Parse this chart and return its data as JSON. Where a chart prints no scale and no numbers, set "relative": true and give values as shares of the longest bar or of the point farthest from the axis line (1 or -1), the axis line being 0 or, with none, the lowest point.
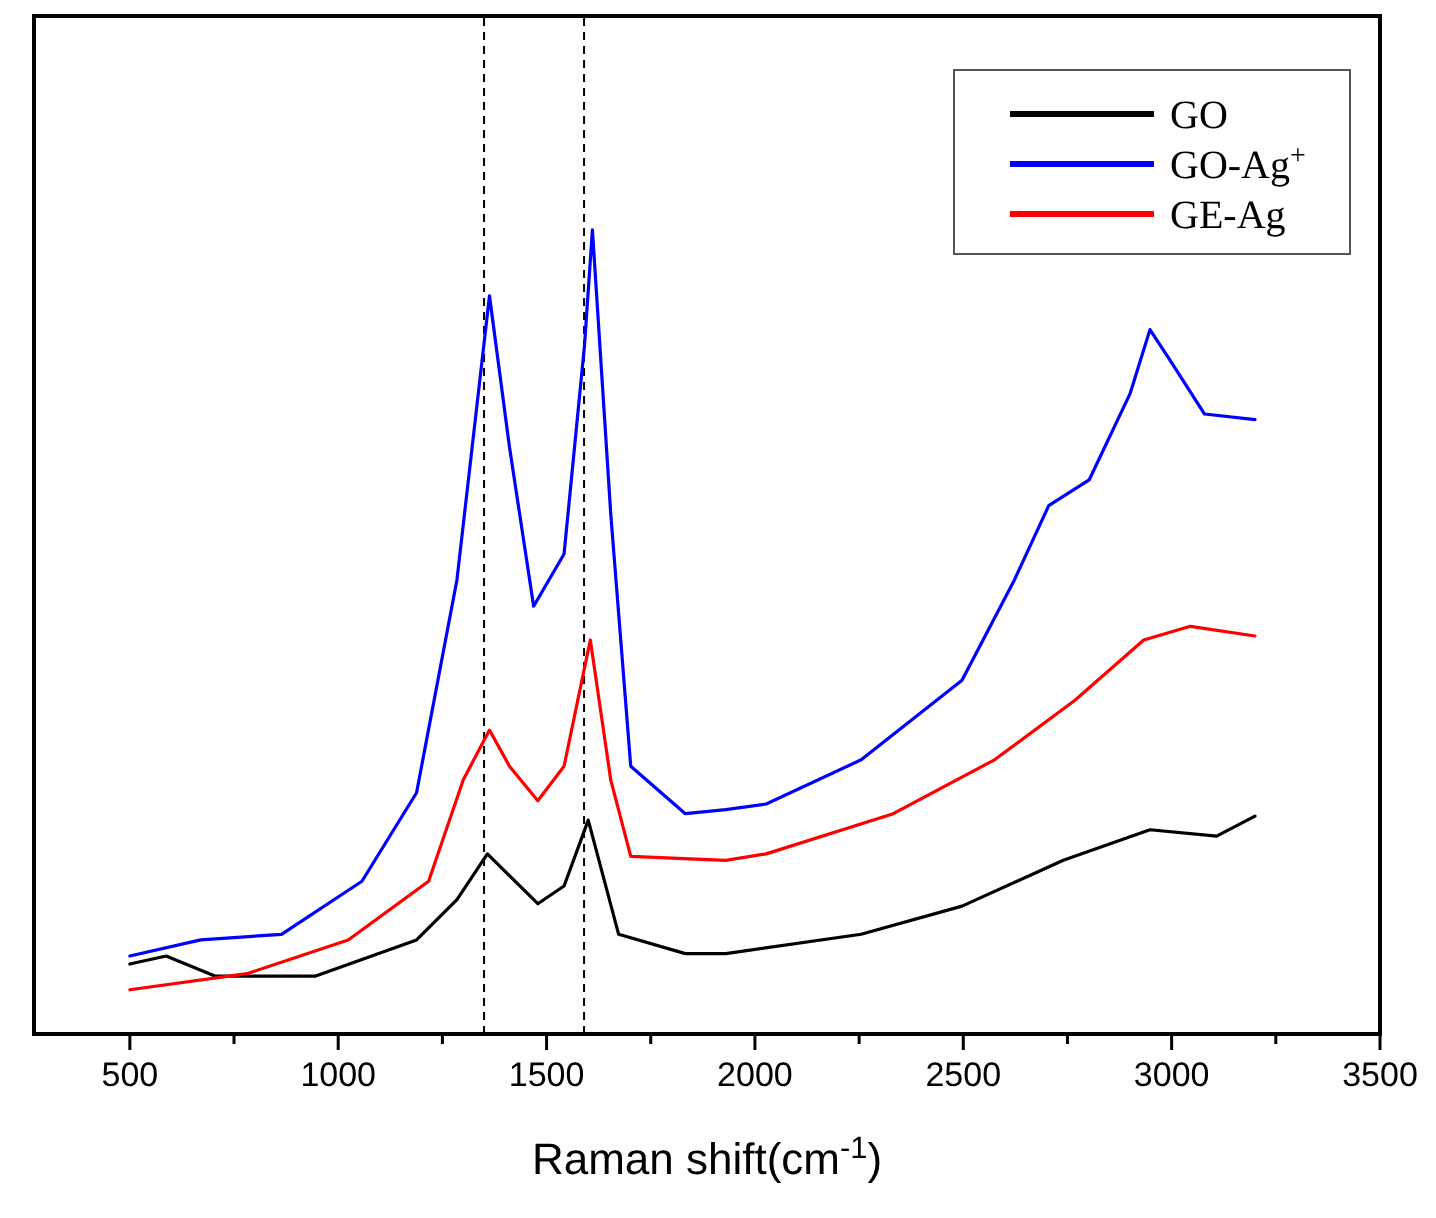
{
  "chart_data": {
    "type": "line",
    "xlabel": "Raman shift(cm$^{-1}$)",
    "relative": true,
    "xlim": [
      270,
      3500
    ],
    "xticks": [
      500,
      {
        "value": 750,
        "label": null
      },
      1000,
      {
        "value": 1250,
        "label": null
      },
      1500,
      {
        "value": 1750,
        "label": null
      },
      2000,
      {
        "value": 2250,
        "label": null
      },
      2500,
      {
        "value": 2750,
        "label": null
      },
      3000,
      {
        "value": 3250,
        "label": null
      },
      3500
    ],
    "legend": "top right",
    "grid": false,
    "tick_labels": "x",
    "line_style": "solid",
    "marker": "none",
    "ref_lines": [
      {
        "axis": "x",
        "value": 1350,
        "color": "#000000",
        "line_style": "dashed"
      },
      {
        "axis": "x",
        "value": 1590,
        "color": "#000000",
        "line_style": "dashed"
      }
    ],
    "series": [
      {
        "name": "GO",
        "color": "#000000",
        "x": [
          500,
          587,
          704,
          946,
          1188,
          1285,
          1358,
          1479,
          1542,
          1600,
          1673,
          1833,
          1930,
          2255,
          2497,
          2740,
          2948,
          3108,
          3200
        ],
        "values": [
          0.087,
          0.097,
          0.072,
          0.072,
          0.117,
          0.167,
          0.224,
          0.162,
          0.184,
          0.266,
          0.124,
          0.1,
          0.1,
          0.124,
          0.159,
          0.216,
          0.254,
          0.246,
          0.271
        ]
      },
      {
        "name": "GO-Ag$^{+}$",
        "color": "#0000ff",
        "x": [
          500,
          670,
          864,
          1057,
          1188,
          1285,
          1363,
          1411,
          1469,
          1542,
          1591,
          1610,
          1654,
          1702,
          1833,
          1930,
          2027,
          2255,
          2497,
          2623,
          2705,
          2802,
          2900,
          2948,
          2996,
          3079,
          3200
        ],
        "values": [
          0.097,
          0.117,
          0.124,
          0.19,
          0.3,
          0.565,
          0.918,
          0.73,
          0.532,
          0.597,
          0.856,
          1,
          0.647,
          0.333,
          0.274,
          0.279,
          0.286,
          0.341,
          0.44,
          0.565,
          0.657,
          0.689,
          0.796,
          0.876,
          0.838,
          0.771,
          0.764
        ]
      },
      {
        "name": "GE-Ag",
        "color": "#ff0000",
        "x": [
          500,
          781,
          1024,
          1217,
          1300,
          1363,
          1411,
          1479,
          1542,
          1605,
          1654,
          1702,
          1930,
          2027,
          2332,
          2575,
          2768,
          2933,
          3045,
          3200
        ],
        "values": [
          0.055,
          0.075,
          0.117,
          0.19,
          0.316,
          0.378,
          0.333,
          0.29,
          0.333,
          0.49,
          0.316,
          0.221,
          0.216,
          0.224,
          0.274,
          0.341,
          0.415,
          0.49,
          0.507,
          0.495
        ]
      }
    ]
  }
}
